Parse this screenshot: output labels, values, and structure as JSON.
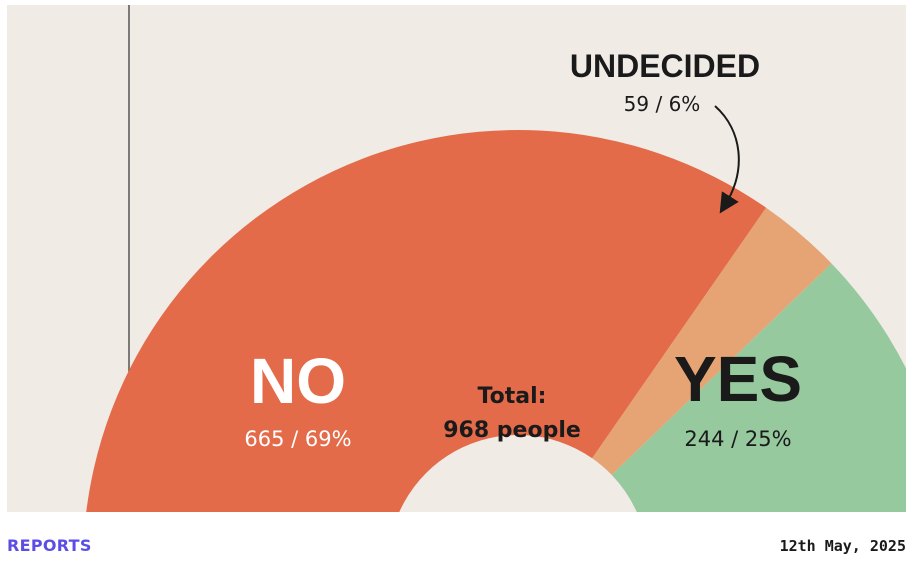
{
  "chart_data": {
    "type": "pie",
    "variant": "semi-donut",
    "total_label": "Total:",
    "total_value": "968 people",
    "slices": [
      {
        "name": "NO",
        "count": 665,
        "percent": 69,
        "value_label": "665 / 69%",
        "color": "#e46b4a",
        "label_color": "#ffffff"
      },
      {
        "name": "UNDECIDED",
        "count": 59,
        "percent": 6,
        "value_label": "59 / 6%",
        "color": "#e6a474",
        "label_color": "#1a1a1a"
      },
      {
        "name": "YES",
        "count": 244,
        "percent": 25,
        "value_label": "244 / 25%",
        "color": "#96c99e",
        "label_color": "#1a1a1a"
      }
    ],
    "background_color": "#f0ebe5"
  },
  "footer": {
    "section_link": "REPORTS",
    "date": "12th May, 2025"
  }
}
